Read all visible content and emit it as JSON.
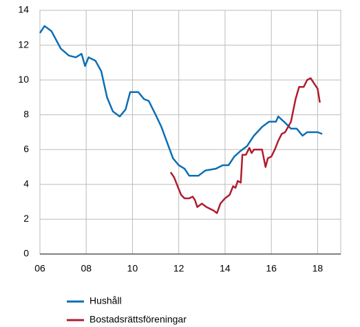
{
  "chart_data": {
    "type": "line",
    "xlim": [
      2006,
      2019
    ],
    "ylim": [
      0,
      14
    ],
    "xticks": [
      {
        "value": 2006,
        "label": "06"
      },
      {
        "value": 2008,
        "label": "08"
      },
      {
        "value": 2010,
        "label": "10"
      },
      {
        "value": 2012,
        "label": "12"
      },
      {
        "value": 2014,
        "label": "14"
      },
      {
        "value": 2016,
        "label": "16"
      },
      {
        "value": 2018,
        "label": "18"
      }
    ],
    "yticks": [
      0,
      2,
      4,
      6,
      8,
      10,
      12,
      14
    ],
    "grid": true,
    "legend": "bottom",
    "series": [
      {
        "name": "Hushåll",
        "color": "#0a6eb4",
        "x": [
          2006.0,
          2006.2,
          2006.5,
          2006.9,
          2007.25,
          2007.55,
          2007.8,
          2007.95,
          2008.1,
          2008.4,
          2008.65,
          2008.9,
          2009.15,
          2009.45,
          2009.7,
          2009.9,
          2010.25,
          2010.5,
          2010.7,
          2011.0,
          2011.25,
          2011.5,
          2011.75,
          2012.0,
          2012.25,
          2012.45,
          2012.85,
          2013.15,
          2013.6,
          2013.9,
          2014.15,
          2014.4,
          2014.65,
          2014.95,
          2015.25,
          2015.6,
          2015.9,
          2016.2,
          2016.3,
          2016.55,
          2016.85,
          2017.1,
          2017.35,
          2017.55,
          2017.8,
          2018.0,
          2018.2
        ],
        "values": [
          12.7,
          13.1,
          12.8,
          11.8,
          11.4,
          11.3,
          11.5,
          10.8,
          11.3,
          11.1,
          10.5,
          9.0,
          8.2,
          7.9,
          8.3,
          9.3,
          9.3,
          8.9,
          8.8,
          8.0,
          7.3,
          6.4,
          5.5,
          5.1,
          4.9,
          4.5,
          4.5,
          4.8,
          4.9,
          5.1,
          5.1,
          5.6,
          5.9,
          6.2,
          6.8,
          7.3,
          7.6,
          7.6,
          7.9,
          7.6,
          7.2,
          7.2,
          6.8,
          7.0,
          7.0,
          7.0,
          6.9
        ]
      },
      {
        "name": "Bostadsrättsföreningar",
        "color": "#b01c2e",
        "x": [
          2011.65,
          2011.8,
          2011.95,
          2012.1,
          2012.25,
          2012.45,
          2012.6,
          2012.7,
          2012.8,
          2013.0,
          2013.2,
          2013.5,
          2013.65,
          2013.8,
          2014.0,
          2014.2,
          2014.35,
          2014.45,
          2014.55,
          2014.68,
          2014.75,
          2014.9,
          2015.05,
          2015.15,
          2015.25,
          2015.45,
          2015.6,
          2015.75,
          2015.85,
          2016.0,
          2016.15,
          2016.3,
          2016.45,
          2016.6,
          2016.85,
          2017.05,
          2017.2,
          2017.4,
          2017.55,
          2017.7,
          2017.85,
          2018.0,
          2018.1
        ],
        "values": [
          4.7,
          4.4,
          3.9,
          3.4,
          3.2,
          3.2,
          3.3,
          3.1,
          2.7,
          2.9,
          2.7,
          2.5,
          2.35,
          2.9,
          3.2,
          3.4,
          3.9,
          3.8,
          4.2,
          4.1,
          5.7,
          5.7,
          6.1,
          5.8,
          6.0,
          6.0,
          6.0,
          5.0,
          5.5,
          5.6,
          6.0,
          6.5,
          6.9,
          7.0,
          7.6,
          8.9,
          9.6,
          9.6,
          10.0,
          10.1,
          9.8,
          9.5,
          8.7
        ]
      }
    ]
  }
}
